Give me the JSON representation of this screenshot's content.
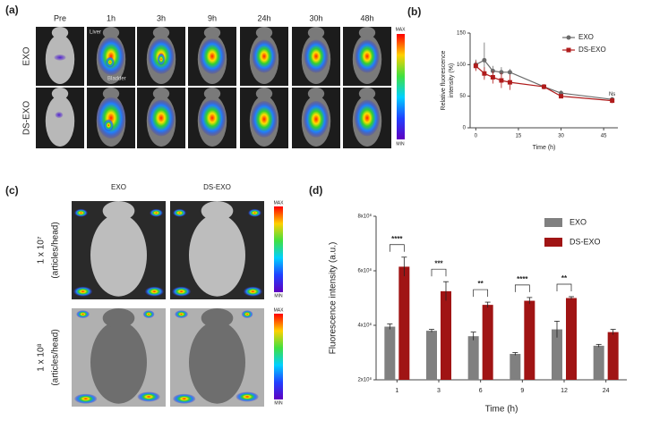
{
  "panels": {
    "a": {
      "label": "(a)",
      "columns": [
        "Pre",
        "1h",
        "3h",
        "9h",
        "24h",
        "30h",
        "48h"
      ],
      "rows": [
        "EXO",
        "DS-EXO"
      ],
      "annotations": [
        "Liver",
        "Bladder"
      ],
      "colorbar": {
        "max": "MAX",
        "min": "MIN"
      }
    },
    "c": {
      "label": "(c)",
      "columns": [
        "EXO",
        "DS-EXO"
      ],
      "rows": [
        {
          "dose": "1 x 10⁷",
          "unit": "(articles/head)"
        },
        {
          "dose": "1 x 10⁸",
          "unit": "(articles/head)"
        }
      ],
      "colorbar": {
        "max": "MAX",
        "min": "MIN"
      }
    }
  },
  "chart_data": [
    {
      "type": "line",
      "panel_label": "(b)",
      "xlabel": "Time (h)",
      "ylabel": [
        "Relative fluorescence",
        "intensity (%)"
      ],
      "x": [
        0,
        3,
        6,
        9,
        12,
        24,
        30,
        48
      ],
      "series": [
        {
          "name": "EXO",
          "color": "#6b6b6b",
          "values": [
            100,
            107,
            90,
            88,
            88,
            65,
            55,
            45
          ],
          "errors": [
            8,
            28,
            8,
            8,
            5,
            4,
            4,
            4
          ]
        },
        {
          "name": "DS-EXO",
          "color": "#b01c1c",
          "values": [
            98,
            86,
            80,
            75,
            72,
            65,
            50,
            43
          ],
          "errors": [
            8,
            10,
            10,
            12,
            12,
            4,
            3,
            4
          ]
        }
      ],
      "xlim": [
        -2,
        50
      ],
      "ylim": [
        0,
        150
      ],
      "xticks": [
        0,
        15,
        30,
        45
      ],
      "yticks": [
        0,
        50,
        100,
        150
      ],
      "annotations": [
        {
          "text": "Ns",
          "x": 48,
          "y": 53
        }
      ]
    },
    {
      "type": "bar",
      "panel_label": "(d)",
      "xlabel": "Time (h)",
      "ylabel": "Fluorescence intensity (a.u.)",
      "categories": [
        "1",
        "3",
        "6",
        "9",
        "12",
        "24"
      ],
      "series": [
        {
          "name": "EXO",
          "color": "#808080",
          "values": [
            395000000,
            380000000,
            360000000,
            295000000,
            385000000,
            325000000
          ],
          "errors": [
            10000000,
            5000000,
            15000000,
            5000000,
            30000000,
            5000000
          ]
        },
        {
          "name": "DS-EXO",
          "color": "#a01414",
          "values": [
            615000000,
            525000000,
            475000000,
            490000000,
            500000000,
            375000000
          ],
          "errors": [
            35000000,
            35000000,
            10000000,
            12000000,
            5000000,
            10000000
          ]
        }
      ],
      "significance": [
        "****",
        "***",
        "**",
        "****",
        "**",
        null
      ],
      "ylim": [
        200000000,
        800000000
      ],
      "yticks": [
        {
          "value": 200000000,
          "label": "2x10⁸"
        },
        {
          "value": 400000000,
          "label": "4x10⁸"
        },
        {
          "value": 600000000,
          "label": "6x10⁸"
        },
        {
          "value": 800000000,
          "label": "8x10⁸"
        }
      ]
    }
  ]
}
